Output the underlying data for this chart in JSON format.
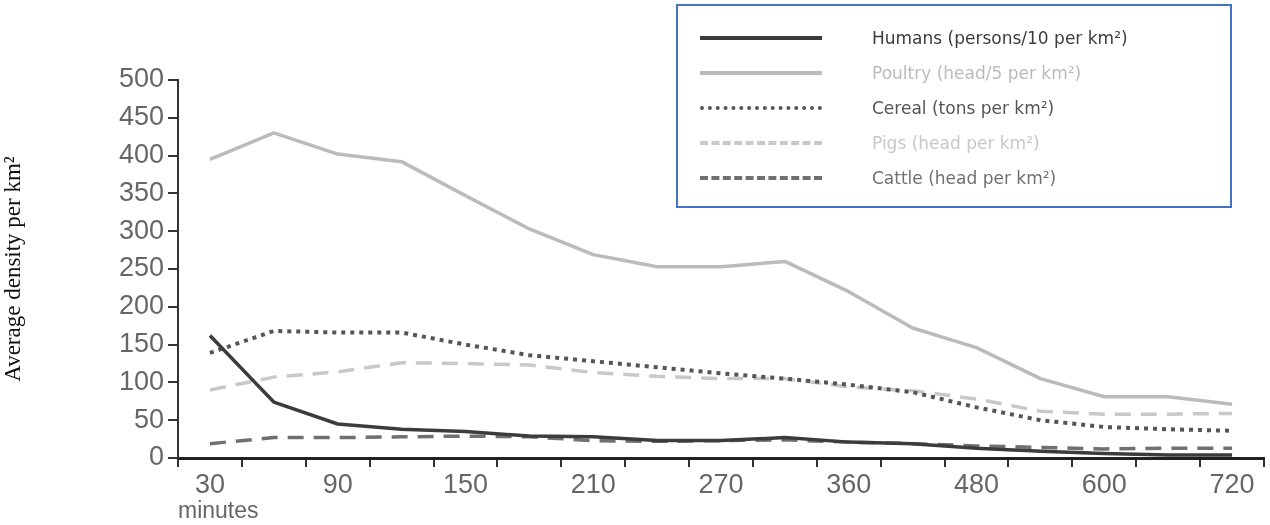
{
  "chart_data": {
    "type": "line",
    "xlabel": "minutes",
    "ylabel": "Average density per km²",
    "categories": [
      "30",
      null,
      "90",
      null,
      "150",
      null,
      "210",
      null,
      "270",
      null,
      "360",
      null,
      "480",
      null,
      "600",
      null,
      "720"
    ],
    "series": [
      {
        "name": "Humans (persons/10 per km²)",
        "color": "#3c3c3c",
        "line_style": "solid",
        "values": [
          162,
          74,
          45,
          38,
          35,
          29,
          28,
          23,
          23,
          27,
          21,
          19,
          13,
          9,
          6,
          4,
          4
        ]
      },
      {
        "name": "Poultry (head/5 per km²)",
        "color": "#bbbbbb",
        "line_style": "solid",
        "values": [
          395,
          430,
          402,
          392,
          347,
          303,
          269,
          253,
          253,
          260,
          220,
          172,
          146,
          105,
          81,
          81,
          71
        ]
      },
      {
        "name": "Cereal (tons per km²)",
        "color": "#555555",
        "line_style": "dotted",
        "values": [
          139,
          168,
          166,
          166,
          150,
          136,
          128,
          120,
          112,
          105,
          97,
          87,
          67,
          50,
          41,
          38,
          36
        ]
      },
      {
        "name": "Pigs (head per km²)",
        "color": "#c8c8c8",
        "line_style": "dashed",
        "values": [
          90,
          107,
          114,
          126,
          125,
          123,
          113,
          108,
          105,
          105,
          94,
          89,
          78,
          62,
          58,
          58,
          59
        ]
      },
      {
        "name": "Cattle (head per km²)",
        "color": "#707070",
        "line_style": "dashed",
        "values": [
          19,
          27,
          27,
          28,
          29,
          28,
          23,
          22,
          23,
          24,
          21,
          19,
          16,
          14,
          12,
          13,
          13
        ]
      }
    ],
    "ylim": [
      0,
      500
    ],
    "yticks": [
      0,
      50,
      100,
      150,
      200,
      250,
      300,
      350,
      400,
      450,
      500
    ],
    "legend": "top right",
    "marker": "none"
  }
}
